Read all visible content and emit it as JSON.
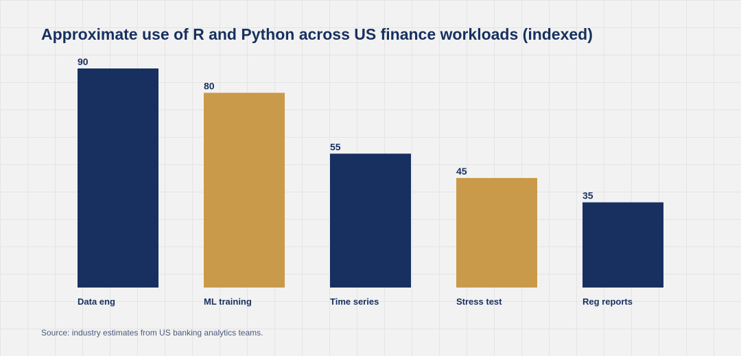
{
  "chart_data": {
    "type": "bar",
    "title": "Approximate use of R and Python across US finance workloads (indexed)",
    "categories": [
      "Data eng",
      "ML training",
      "Time series",
      "Stress test",
      "Reg reports"
    ],
    "values": [
      90,
      80,
      55,
      45,
      35
    ],
    "bar_colors": [
      "#17305f",
      "#c99a4a",
      "#17305f",
      "#c99a4a",
      "#17305f"
    ],
    "ylim": [
      0,
      90
    ],
    "grid": true,
    "legend": "none",
    "source": "Source: industry estimates from US banking analytics teams."
  }
}
